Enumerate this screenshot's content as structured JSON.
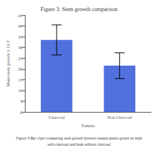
{
  "chart_data": {
    "type": "bar",
    "title": "Figure 3: Stem growth comparison",
    "categories": [
      "Charcoal",
      "Non Charcoal"
    ],
    "values": [
      33.5,
      21.5
    ],
    "errors": [
      7.0,
      6.0
    ],
    "xlabel": "Tomato",
    "ylabel": "Mean stem growth ± 1S.F",
    "ylim": [
      0,
      45
    ],
    "yticks": [
      0,
      5,
      10,
      15,
      20,
      25,
      30,
      35,
      40,
      45
    ],
    "grid": false,
    "annotations": [
      "Figure 3:Bar chart comparing stem growth between tomato plants grown on beds",
      "with charcoal and beds without charcoal"
    ]
  }
}
